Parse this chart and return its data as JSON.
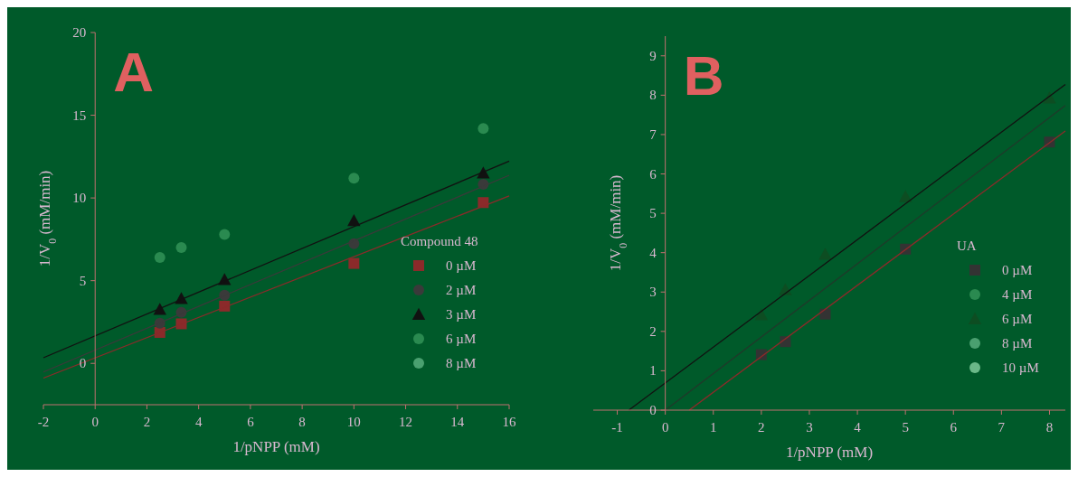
{
  "chart_data": [
    {
      "type": "scatter",
      "xlabel": "1/pNPP (mM)",
      "ylabel": "1/V$_{0}$ (mM/min)",
      "legend_title": "Compound 48",
      "legend": "center right",
      "annotations": [
        "A"
      ],
      "xlim": [
        -2,
        16
      ],
      "xticks": [
        -2,
        0,
        2,
        4,
        6,
        8,
        10,
        12,
        14,
        16
      ],
      "ylim": [
        -2.5,
        20
      ],
      "yticks": [
        0,
        5,
        10,
        15,
        20
      ],
      "x": [
        2.5,
        3.33,
        5,
        10,
        15
      ],
      "series": [
        {
          "name": "0 µM",
          "color": "#8b2a2a",
          "marker": "square",
          "values": [
            1.87,
            2.39,
            3.46,
            6.04,
            9.72
          ]
        },
        {
          "name": "2 µM",
          "color": "#3a3a3a",
          "marker": "circle",
          "values": [
            2.43,
            3.08,
            4.12,
            7.24,
            10.82
          ]
        },
        {
          "name": "3 µM",
          "color": "#111111",
          "marker": "triangle",
          "values": [
            3.26,
            3.92,
            5.07,
            8.63,
            11.51
          ]
        },
        {
          "name": "6 µM",
          "color": "#2a8a50",
          "marker": "circle",
          "values": [
            6.4,
            7.0,
            7.8,
            11.2,
            14.2
          ]
        },
        {
          "name": "8 µM",
          "color": "#4aa070",
          "marker": "circle",
          "values": [
            null,
            null,
            null,
            null,
            null
          ]
        },
        {
          "type": "line",
          "color": "#111111",
          "x": [
            -2,
            16
          ],
          "values": [
            0.34,
            12.23
          ]
        },
        {
          "type": "line",
          "color": "#3a3a3a",
          "x": [
            -2,
            16
          ],
          "values": [
            -0.52,
            11.37
          ]
        },
        {
          "type": "line",
          "color": "#8b2a2a",
          "x": [
            -2,
            16
          ],
          "values": [
            -0.89,
            10.12
          ]
        }
      ]
    },
    {
      "type": "scatter",
      "xlabel": "1/pNPP (mM)",
      "ylabel": "1/V$_{0}$ (mM/min)",
      "legend_title": "UA",
      "legend": "center right",
      "annotations": [
        "B"
      ],
      "xlim": [
        -1.5,
        8.33
      ],
      "xticks": [
        -1,
        0,
        1,
        2,
        3,
        4,
        5,
        6,
        7,
        8
      ],
      "ylim": [
        0,
        9.5
      ],
      "yticks": [
        0,
        1,
        2,
        3,
        4,
        5,
        6,
        7,
        8,
        9
      ],
      "x": [
        2,
        2.5,
        3.33,
        5,
        8
      ],
      "series": [
        {
          "name": "0 µM",
          "color": "#333333",
          "marker": "square",
          "values": [
            1.41,
            1.74,
            2.44,
            4.09,
            6.81
          ]
        },
        {
          "name": "4 µM",
          "color": "#2a8a50",
          "marker": "circle",
          "values": [
            null,
            null,
            null,
            null,
            null
          ]
        },
        {
          "name": "6 µM",
          "color": "#0d4d22",
          "marker": "triangle",
          "values": [
            2.42,
            3.06,
            3.96,
            5.42,
            7.93
          ]
        },
        {
          "name": "8 µM",
          "color": "#4aa070",
          "marker": "circle",
          "values": [
            null,
            null,
            null,
            null,
            null
          ]
        },
        {
          "name": "10 µM",
          "color": "#6ab888",
          "marker": "circle",
          "values": [
            null,
            null,
            null,
            null,
            null
          ]
        },
        {
          "type": "line",
          "color": "#111111",
          "x": [
            -0.76,
            8.33
          ],
          "values": [
            0,
            8.27
          ]
        },
        {
          "type": "line",
          "color": "#1f3a2a",
          "x": [
            0,
            8.33
          ],
          "values": [
            0,
            7.74
          ]
        },
        {
          "type": "line",
          "color": "#8b2a2a",
          "x": [
            0.5,
            8.33
          ],
          "values": [
            0,
            7.09
          ]
        }
      ]
    }
  ]
}
